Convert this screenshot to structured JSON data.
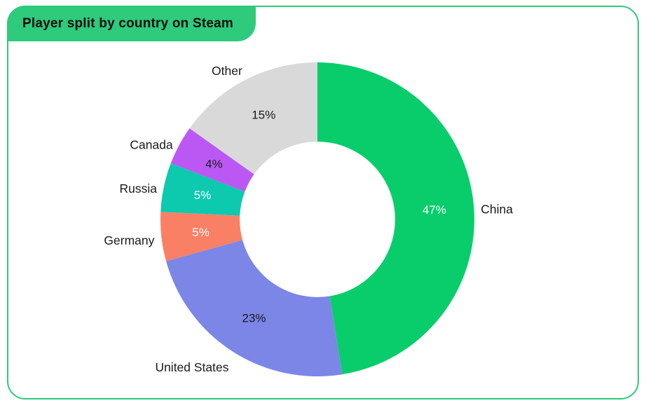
{
  "card": {
    "accent_color": "#2DCB7B",
    "background_color": "#FFFFFF"
  },
  "chart_data": {
    "type": "pie",
    "variant": "donut",
    "title": "Player split by country on Steam",
    "segments": [
      {
        "label": "China",
        "value": 47,
        "value_label": "47%",
        "color": "#09CD6B",
        "value_label_color": "#FFFFFF"
      },
      {
        "label": "United States",
        "value": 23,
        "value_label": "23%",
        "color": "#7B86E7",
        "value_label_color": "#1A1A1A"
      },
      {
        "label": "Germany",
        "value": 5,
        "value_label": "5%",
        "color": "#FA8065",
        "value_label_color": "#FFFFFF"
      },
      {
        "label": "Russia",
        "value": 5,
        "value_label": "5%",
        "color": "#0DC9AE",
        "value_label_color": "#FFFFFF"
      },
      {
        "label": "Canada",
        "value": 4,
        "value_label": "4%",
        "color": "#BB58F3",
        "value_label_color": "#1A1A1A"
      },
      {
        "label": "Other",
        "value": 15,
        "value_label": "15%",
        "color": "#D9D9D9",
        "value_label_color": "#1A1A1A"
      }
    ],
    "start_angle_deg": 0,
    "direction": "clockwise",
    "inner_radius_ratio": 0.495,
    "label_position": "outside",
    "label_color": "#1A1A1A",
    "legend_position": "none"
  }
}
